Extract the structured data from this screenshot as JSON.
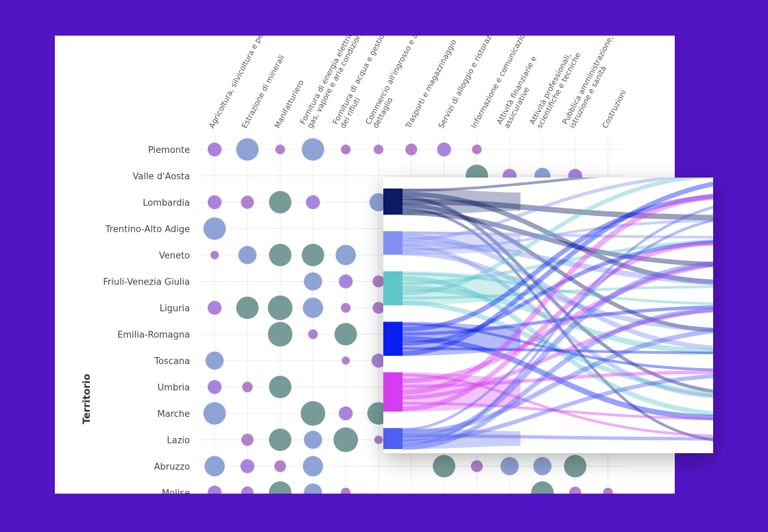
{
  "colors": {
    "background": "#5314c4",
    "bubble_a": "#9b6fd6",
    "bubble_b": "#7b93d0",
    "bubble_c": "#5f8a86",
    "bubble_d": "#a46bc2"
  },
  "chart_data": [
    {
      "type": "scatter",
      "subtype": "bubble-matrix",
      "ylabel": "Territorio",
      "regions": [
        "Piemonte",
        "Valle d'Aosta",
        "Lombardia",
        "Trentino-Alto Adige",
        "Veneto",
        "Friuli-Venezia Giulia",
        "Liguria",
        "Emilia-Romagna",
        "Toscana",
        "Umbria",
        "Marche",
        "Lazio",
        "Abruzzo",
        "Molise"
      ],
      "sectors": [
        [
          "Agricoltura, silvicoltura e pesca"
        ],
        [
          "Estrazione di minerali"
        ],
        [
          "Manifatturiero"
        ],
        [
          "Fornitura di energia elettrica,",
          "gas, vapore e aria condizionata"
        ],
        [
          "Fornitura di acqua e gestione",
          "dei rifiuti"
        ],
        [
          "Commercio all'ingrosso e al",
          "dettaglio"
        ],
        [
          "Trasporti e magazzinaggio"
        ],
        [
          "Servizi di alloggio e ristorazione"
        ],
        [
          "Informazione e comunicazione"
        ],
        [
          "Attività finanziarie e",
          "assicurative"
        ],
        [
          "Attività professionali,",
          "scientifiche e tecniche"
        ],
        [
          "Pubblica amministrazione,",
          "istruzione e sanità"
        ],
        [
          "Costruzioni"
        ]
      ],
      "points": [
        [
          0,
          0,
          2,
          "a"
        ],
        [
          0,
          1,
          4,
          "b"
        ],
        [
          0,
          2,
          1,
          "d"
        ],
        [
          0,
          3,
          4,
          "b"
        ],
        [
          0,
          4,
          1,
          "d"
        ],
        [
          0,
          5,
          1,
          "d"
        ],
        [
          0,
          6,
          1.5,
          "d"
        ],
        [
          0,
          7,
          2,
          "a"
        ],
        [
          0,
          8,
          1,
          "d"
        ],
        [
          1,
          8,
          4,
          "c"
        ],
        [
          1,
          9,
          2,
          "a"
        ],
        [
          1,
          10,
          2.5,
          "b"
        ],
        [
          1,
          11,
          2,
          "a"
        ],
        [
          2,
          0,
          2,
          "a"
        ],
        [
          2,
          1,
          1.8,
          "d"
        ],
        [
          2,
          2,
          4,
          "c"
        ],
        [
          2,
          3,
          2,
          "a"
        ],
        [
          2,
          5,
          3,
          "b"
        ],
        [
          3,
          0,
          4,
          "b"
        ],
        [
          4,
          0,
          0.7,
          "d"
        ],
        [
          4,
          1,
          3,
          "b"
        ],
        [
          4,
          2,
          4,
          "c"
        ],
        [
          4,
          3,
          4,
          "c"
        ],
        [
          4,
          4,
          3.5,
          "b"
        ],
        [
          5,
          3,
          3,
          "b"
        ],
        [
          5,
          4,
          2,
          "a"
        ],
        [
          5,
          5,
          1.5,
          "d"
        ],
        [
          6,
          0,
          2,
          "a"
        ],
        [
          6,
          1,
          4,
          "c"
        ],
        [
          6,
          2,
          4.5,
          "c"
        ],
        [
          6,
          3,
          3.5,
          "b"
        ],
        [
          6,
          4,
          1,
          "d"
        ],
        [
          6,
          5,
          1.5,
          "d"
        ],
        [
          7,
          2,
          4.5,
          "c"
        ],
        [
          7,
          3,
          1,
          "d"
        ],
        [
          7,
          4,
          4,
          "c"
        ],
        [
          8,
          0,
          3,
          "b"
        ],
        [
          8,
          4,
          0.6,
          "d"
        ],
        [
          8,
          5,
          2,
          "a"
        ],
        [
          9,
          0,
          2,
          "a"
        ],
        [
          9,
          1,
          1.2,
          "d"
        ],
        [
          9,
          2,
          4,
          "c"
        ],
        [
          10,
          0,
          4,
          "b"
        ],
        [
          10,
          3,
          4.5,
          "c"
        ],
        [
          10,
          4,
          2,
          "a"
        ],
        [
          10,
          5,
          4,
          "c"
        ],
        [
          11,
          1,
          1.6,
          "d"
        ],
        [
          11,
          2,
          4,
          "c"
        ],
        [
          11,
          3,
          3,
          "b"
        ],
        [
          11,
          4,
          4.5,
          "c"
        ],
        [
          11,
          5,
          0.7,
          "d"
        ],
        [
          12,
          0,
          3.5,
          "b"
        ],
        [
          12,
          1,
          2,
          "a"
        ],
        [
          12,
          2,
          1.5,
          "d"
        ],
        [
          12,
          3,
          3.5,
          "b"
        ],
        [
          12,
          7,
          4,
          "c"
        ],
        [
          12,
          8,
          1.5,
          "d"
        ],
        [
          12,
          9,
          3,
          "b"
        ],
        [
          12,
          10,
          3,
          "b"
        ],
        [
          12,
          11,
          4,
          "c"
        ],
        [
          13,
          0,
          2,
          "a"
        ],
        [
          13,
          1,
          1.6,
          "a"
        ],
        [
          13,
          2,
          4,
          "c"
        ],
        [
          13,
          3,
          3,
          "b"
        ],
        [
          13,
          4,
          1,
          "d"
        ],
        [
          13,
          10,
          4,
          "c"
        ],
        [
          13,
          11,
          1.5,
          "d"
        ],
        [
          13,
          12,
          1,
          "d"
        ]
      ]
    },
    {
      "type": "sankey",
      "nodes": [
        {
          "color": "#0b1a66",
          "value": 1
        },
        {
          "color": "#8090f0",
          "value": 0.9
        },
        {
          "color": "#5cc6c8",
          "value": 1.3
        },
        {
          "color": "#0a1ef0",
          "value": 1.3
        },
        {
          "color": "#d63cf0",
          "value": 1.5
        },
        {
          "color": "#4f5ff0",
          "value": 0.8
        }
      ],
      "flows_per_node": 7
    }
  ]
}
